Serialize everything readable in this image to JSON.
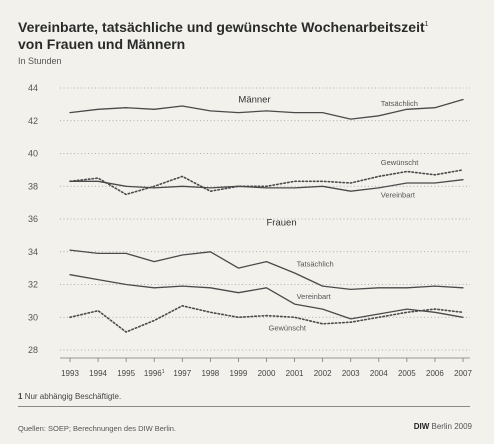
{
  "title": "Vereinbarte, tatsächliche und gewünschte Wochenarbeitszeit",
  "title_sup": "1",
  "title_line2": "von Frauen und Männern",
  "subtitle": "In Stunden",
  "footnote_mark": "1",
  "footnote_text": "Nur abhängig Beschäftigte.",
  "source": "Quellen: SOEP; Berechnungen des DIW Berlin.",
  "brand": "DIW",
  "brand_suffix": "Berlin 2009",
  "chart_data": {
    "type": "line",
    "x": [
      "1993",
      "1994",
      "1995",
      "1996",
      "1997",
      "1998",
      "1999",
      "2000",
      "2001",
      "2002",
      "2003",
      "2004",
      "2005",
      "2006",
      "2007"
    ],
    "x_marks": {
      "1996": "1"
    },
    "ylim": [
      28,
      44
    ],
    "yticks": [
      28,
      30,
      32,
      34,
      36,
      38,
      40,
      42,
      44
    ],
    "grid": "horizontal-dotted",
    "group_labels": [
      {
        "text": "Männer",
        "x": "1999",
        "y": 43.1
      },
      {
        "text": "Frauen",
        "x": "2000",
        "y": 35.6
      }
    ],
    "series": [
      {
        "name": "Tatsächlich",
        "group": "Männer",
        "style": "solid",
        "values": [
          42.5,
          42.7,
          42.8,
          42.7,
          42.9,
          42.6,
          42.5,
          42.6,
          42.5,
          42.5,
          42.1,
          42.3,
          42.7,
          42.8,
          43.3
        ],
        "label_x": "2004",
        "label_y": 42.9
      },
      {
        "name": "Gewünscht",
        "group": "Männer",
        "style": "dotted",
        "values": [
          38.3,
          38.5,
          37.5,
          38.0,
          38.6,
          37.7,
          38.0,
          38.0,
          38.3,
          38.3,
          38.2,
          38.6,
          38.9,
          38.7,
          39.0
        ],
        "label_x": "2004",
        "label_y": 39.3
      },
      {
        "name": "Vereinbart",
        "group": "Männer",
        "style": "solid",
        "values": [
          38.3,
          38.3,
          38.0,
          37.9,
          38.0,
          37.9,
          38.0,
          37.9,
          37.9,
          38.0,
          37.7,
          37.9,
          38.2,
          38.2,
          38.4
        ],
        "label_x": "2004",
        "label_y": 37.3
      },
      {
        "name": "Tatsächlich",
        "group": "Frauen",
        "style": "solid",
        "values": [
          34.1,
          33.9,
          33.9,
          33.4,
          33.8,
          34.0,
          33.0,
          33.4,
          32.7,
          31.9,
          31.7,
          31.8,
          31.8,
          31.9,
          31.8
        ],
        "label_x": "2001",
        "label_y": 33.1
      },
      {
        "name": "Vereinbart",
        "group": "Frauen",
        "style": "solid",
        "values": [
          32.6,
          32.3,
          32.0,
          31.8,
          31.9,
          31.8,
          31.5,
          31.8,
          30.8,
          30.5,
          29.9,
          30.2,
          30.5,
          30.3,
          30.0
        ],
        "label_x": "2001",
        "label_y": 31.1
      },
      {
        "name": "Gewünscht",
        "group": "Frauen",
        "style": "dotted",
        "values": [
          30.0,
          30.4,
          29.1,
          29.8,
          30.7,
          30.3,
          30.0,
          30.1,
          30.0,
          29.6,
          29.7,
          30.0,
          30.3,
          30.5,
          30.3
        ],
        "label_x": "2000",
        "label_y": 29.2
      }
    ]
  }
}
